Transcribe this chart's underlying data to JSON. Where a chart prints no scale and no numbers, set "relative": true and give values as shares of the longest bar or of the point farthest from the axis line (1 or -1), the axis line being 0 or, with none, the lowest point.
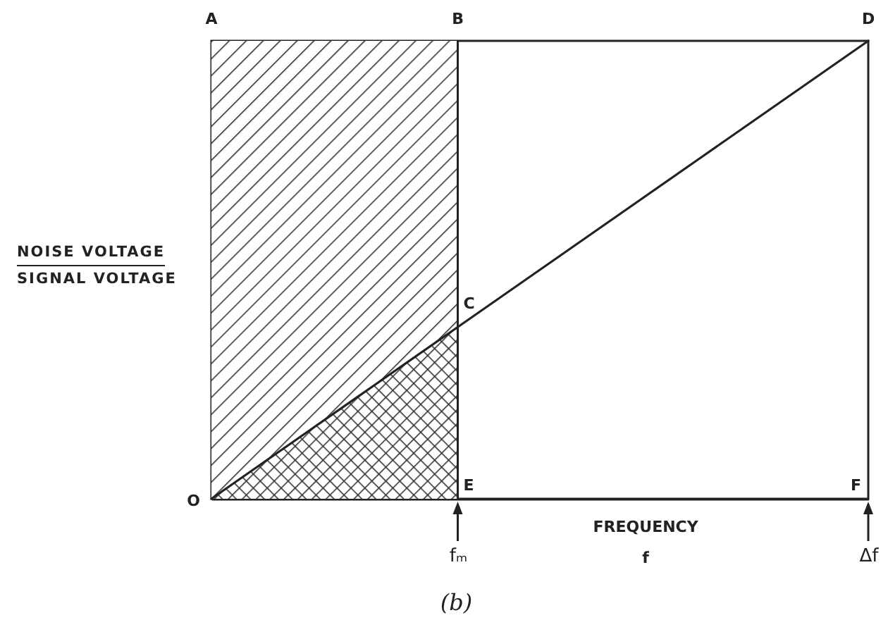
{
  "chart_data": {
    "type": "line",
    "relative": true,
    "xlabel": "FREQUENCY\nf",
    "ylabel": "NOISE VOLTAGE\nSIGNAL VOLTAGE",
    "categories": [
      null,
      null,
      null,
      "fₘ",
      null,
      null,
      null,
      null,
      "Δf"
    ],
    "series": [
      {
        "type": "area",
        "color": "#333333",
        "values": [
          1,
          1,
          1,
          1,
          null,
          null,
          null,
          null,
          null
        ]
      },
      {
        "type": "area",
        "color": "#333333",
        "values": [
          0,
          0.125,
          0.25,
          0.375,
          null,
          null,
          null,
          null,
          null
        ]
      },
      {
        "type": "line",
        "color": "#222222",
        "values": [
          0,
          0.125,
          0.25,
          0.375,
          0.5,
          0.625,
          0.75,
          0.875,
          1
        ]
      }
    ],
    "ref_lines": [
      {
        "axis": "x",
        "value": "fₘ",
        "color": "#222222"
      }
    ],
    "annotations": [
      {
        "text": "A",
        "y": 1
      },
      {
        "text": "B",
        "x": "fₘ",
        "y": 1
      },
      {
        "text": "C",
        "x": "fₘ",
        "y": 0.375
      },
      {
        "text": "D",
        "x": "Δf",
        "y": 1
      },
      {
        "text": "E",
        "x": "fₘ",
        "y": 0
      },
      "F",
      "O",
      "(b)"
    ]
  }
}
